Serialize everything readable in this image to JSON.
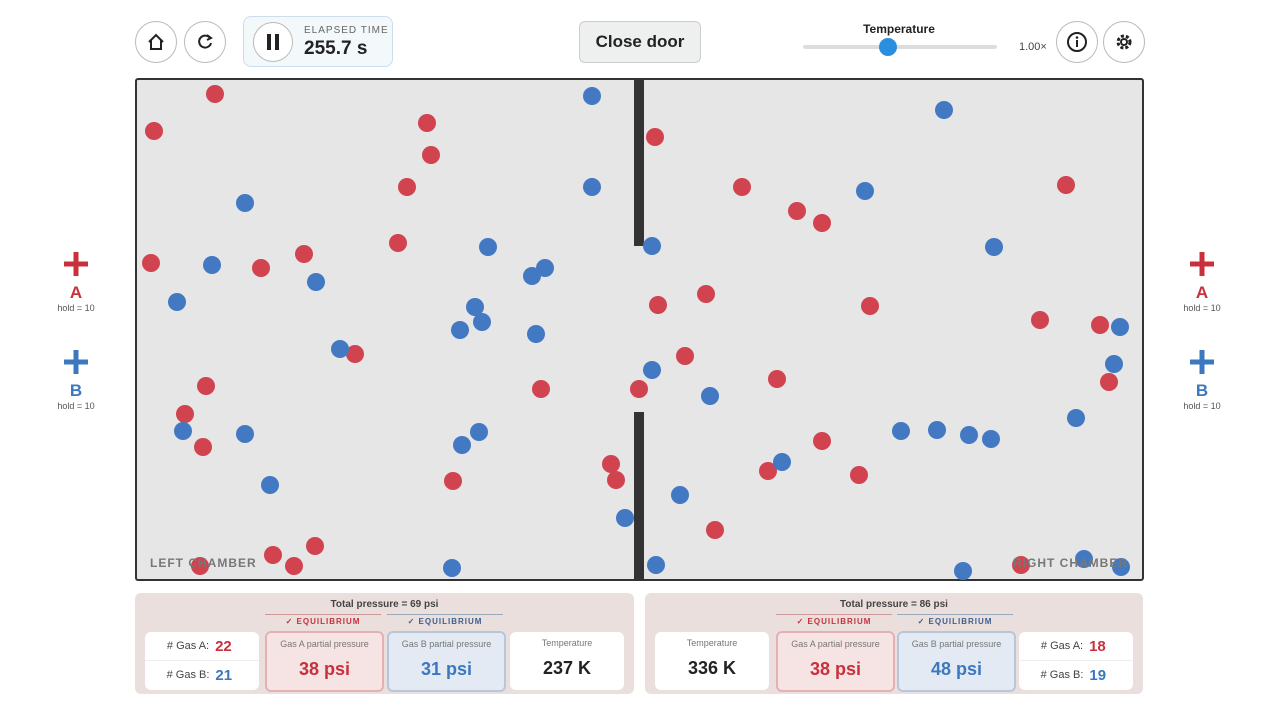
{
  "header": {
    "elapsed_label": "ELAPSED TIME",
    "elapsed_value": "255.7 s",
    "door_button": "Close door",
    "temperature_label": "Temperature",
    "speed": "1.00×"
  },
  "side": {
    "left": {
      "a_label": "A",
      "a_hold": "hold = 10",
      "b_label": "B",
      "b_hold": "hold = 10"
    },
    "right": {
      "a_label": "A",
      "a_hold": "hold = 10",
      "b_label": "B",
      "b_hold": "hold = 10"
    }
  },
  "chamber": {
    "left_label": "LEFT CHAMBER",
    "right_label": "RIGHT CHAMBER"
  },
  "panels": {
    "left": {
      "total_pressure": "Total pressure = 69 psi",
      "gas_a_status": "✓ EQUILIBRIUM",
      "gas_b_status": "✓ EQUILIBRIUM",
      "gas_a_count_label": "# Gas A:",
      "gas_a_count": "22",
      "gas_b_count_label": "# Gas B:",
      "gas_b_count": "21",
      "gas_a_pressure_label": "Gas A partial pressure",
      "gas_a_pressure": "38 psi",
      "gas_b_pressure_label": "Gas B partial pressure",
      "gas_b_pressure": "31 psi",
      "temperature_label": "Temperature",
      "temperature": "237 K"
    },
    "right": {
      "total_pressure": "Total pressure = 86 psi",
      "gas_a_status": "✓ EQUILIBRIUM",
      "gas_b_status": "✓ EQUILIBRIUM",
      "gas_a_count_label": "# Gas A:",
      "gas_a_count": "18",
      "gas_b_count_label": "# Gas B:",
      "gas_b_count": "19",
      "gas_a_pressure_label": "Gas A partial pressure",
      "gas_a_pressure": "38 psi",
      "gas_b_pressure_label": "Gas B partial pressure",
      "gas_b_pressure": "48 psi",
      "temperature_label": "Temperature",
      "temperature": "336 K"
    }
  }
}
